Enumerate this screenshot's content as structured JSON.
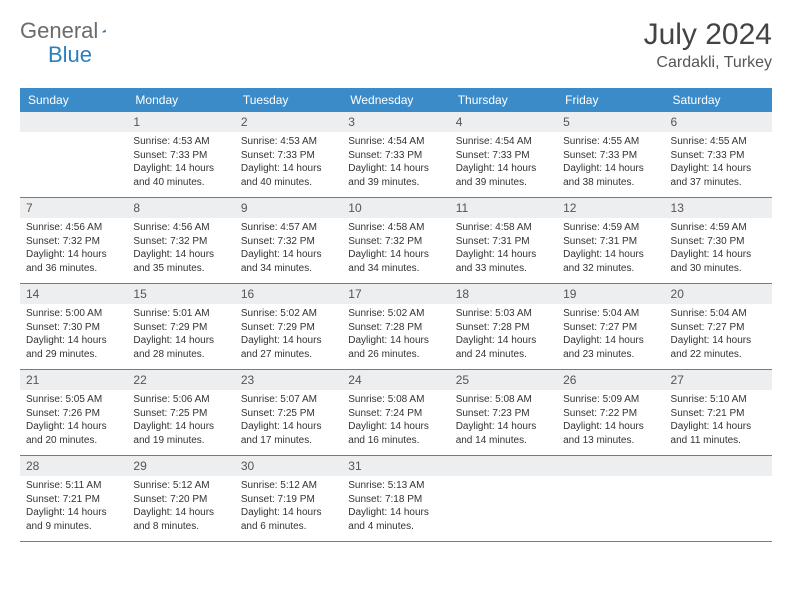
{
  "logo": {
    "part1": "General",
    "part2": "Blue"
  },
  "title": "July 2024",
  "location": "Cardakli, Turkey",
  "colors": {
    "header_bg": "#3b8bc9",
    "header_fg": "#ffffff",
    "daynum_bg": "#eceef0",
    "border": "#3b8bc9",
    "logo_gray": "#6b6b6b",
    "logo_blue": "#2b7fbf",
    "text": "#333333"
  },
  "weekdays": [
    "Sunday",
    "Monday",
    "Tuesday",
    "Wednesday",
    "Thursday",
    "Friday",
    "Saturday"
  ],
  "grid": [
    [
      null,
      {
        "n": "1",
        "sr": "4:53 AM",
        "ss": "7:33 PM",
        "dl": "14 hours and 40 minutes."
      },
      {
        "n": "2",
        "sr": "4:53 AM",
        "ss": "7:33 PM",
        "dl": "14 hours and 40 minutes."
      },
      {
        "n": "3",
        "sr": "4:54 AM",
        "ss": "7:33 PM",
        "dl": "14 hours and 39 minutes."
      },
      {
        "n": "4",
        "sr": "4:54 AM",
        "ss": "7:33 PM",
        "dl": "14 hours and 39 minutes."
      },
      {
        "n": "5",
        "sr": "4:55 AM",
        "ss": "7:33 PM",
        "dl": "14 hours and 38 minutes."
      },
      {
        "n": "6",
        "sr": "4:55 AM",
        "ss": "7:33 PM",
        "dl": "14 hours and 37 minutes."
      }
    ],
    [
      {
        "n": "7",
        "sr": "4:56 AM",
        "ss": "7:32 PM",
        "dl": "14 hours and 36 minutes."
      },
      {
        "n": "8",
        "sr": "4:56 AM",
        "ss": "7:32 PM",
        "dl": "14 hours and 35 minutes."
      },
      {
        "n": "9",
        "sr": "4:57 AM",
        "ss": "7:32 PM",
        "dl": "14 hours and 34 minutes."
      },
      {
        "n": "10",
        "sr": "4:58 AM",
        "ss": "7:32 PM",
        "dl": "14 hours and 34 minutes."
      },
      {
        "n": "11",
        "sr": "4:58 AM",
        "ss": "7:31 PM",
        "dl": "14 hours and 33 minutes."
      },
      {
        "n": "12",
        "sr": "4:59 AM",
        "ss": "7:31 PM",
        "dl": "14 hours and 32 minutes."
      },
      {
        "n": "13",
        "sr": "4:59 AM",
        "ss": "7:30 PM",
        "dl": "14 hours and 30 minutes."
      }
    ],
    [
      {
        "n": "14",
        "sr": "5:00 AM",
        "ss": "7:30 PM",
        "dl": "14 hours and 29 minutes."
      },
      {
        "n": "15",
        "sr": "5:01 AM",
        "ss": "7:29 PM",
        "dl": "14 hours and 28 minutes."
      },
      {
        "n": "16",
        "sr": "5:02 AM",
        "ss": "7:29 PM",
        "dl": "14 hours and 27 minutes."
      },
      {
        "n": "17",
        "sr": "5:02 AM",
        "ss": "7:28 PM",
        "dl": "14 hours and 26 minutes."
      },
      {
        "n": "18",
        "sr": "5:03 AM",
        "ss": "7:28 PM",
        "dl": "14 hours and 24 minutes."
      },
      {
        "n": "19",
        "sr": "5:04 AM",
        "ss": "7:27 PM",
        "dl": "14 hours and 23 minutes."
      },
      {
        "n": "20",
        "sr": "5:04 AM",
        "ss": "7:27 PM",
        "dl": "14 hours and 22 minutes."
      }
    ],
    [
      {
        "n": "21",
        "sr": "5:05 AM",
        "ss": "7:26 PM",
        "dl": "14 hours and 20 minutes."
      },
      {
        "n": "22",
        "sr": "5:06 AM",
        "ss": "7:25 PM",
        "dl": "14 hours and 19 minutes."
      },
      {
        "n": "23",
        "sr": "5:07 AM",
        "ss": "7:25 PM",
        "dl": "14 hours and 17 minutes."
      },
      {
        "n": "24",
        "sr": "5:08 AM",
        "ss": "7:24 PM",
        "dl": "14 hours and 16 minutes."
      },
      {
        "n": "25",
        "sr": "5:08 AM",
        "ss": "7:23 PM",
        "dl": "14 hours and 14 minutes."
      },
      {
        "n": "26",
        "sr": "5:09 AM",
        "ss": "7:22 PM",
        "dl": "14 hours and 13 minutes."
      },
      {
        "n": "27",
        "sr": "5:10 AM",
        "ss": "7:21 PM",
        "dl": "14 hours and 11 minutes."
      }
    ],
    [
      {
        "n": "28",
        "sr": "5:11 AM",
        "ss": "7:21 PM",
        "dl": "14 hours and 9 minutes."
      },
      {
        "n": "29",
        "sr": "5:12 AM",
        "ss": "7:20 PM",
        "dl": "14 hours and 8 minutes."
      },
      {
        "n": "30",
        "sr": "5:12 AM",
        "ss": "7:19 PM",
        "dl": "14 hours and 6 minutes."
      },
      {
        "n": "31",
        "sr": "5:13 AM",
        "ss": "7:18 PM",
        "dl": "14 hours and 4 minutes."
      },
      null,
      null,
      null
    ]
  ],
  "labels": {
    "sunrise": "Sunrise:",
    "sunset": "Sunset:",
    "daylight": "Daylight:"
  }
}
